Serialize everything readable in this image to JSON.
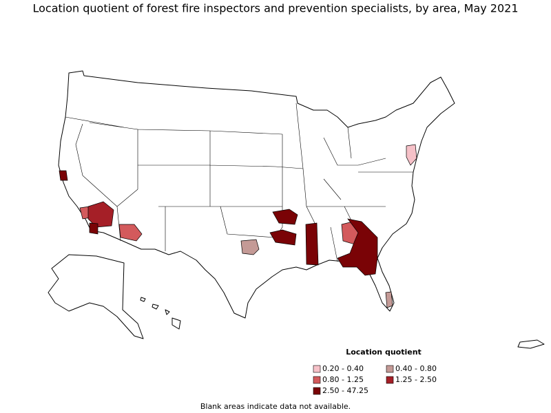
{
  "title": "Location quotient of forest fire inspectors and prevention specialists, by area, May 2021",
  "legend": {
    "title": "Location quotient",
    "items": [
      {
        "label": "0.20 - 0.40",
        "color": "#f6c1c8"
      },
      {
        "label": "0.40 - 0.80",
        "color": "#c49a96"
      },
      {
        "label": "0.80 - 1.25",
        "color": "#d35a5c"
      },
      {
        "label": "1.25 - 2.50",
        "color": "#a51f27"
      },
      {
        "label": "2.50 - 47.25",
        "color": "#7a0306"
      }
    ]
  },
  "note": "Blank areas indicate data not available."
}
